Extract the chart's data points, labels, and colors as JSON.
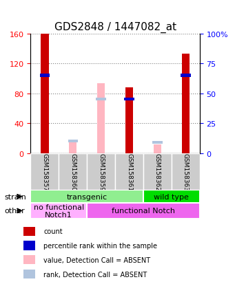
{
  "title": "GDS2848 / 1447082_at",
  "samples": [
    "GSM158357",
    "GSM158360",
    "GSM158359",
    "GSM158361",
    "GSM158362",
    "GSM158363"
  ],
  "count_values": [
    160,
    0,
    0,
    88,
    0,
    133
  ],
  "percentile_values": [
    65,
    0,
    0,
    45,
    0,
    65
  ],
  "absent_value_values": [
    0,
    15,
    93,
    0,
    12,
    0
  ],
  "absent_rank_values": [
    0,
    10,
    45,
    0,
    9,
    0
  ],
  "has_count": [
    true,
    false,
    false,
    true,
    false,
    true
  ],
  "has_percentile": [
    true,
    false,
    false,
    true,
    false,
    true
  ],
  "has_absent_value": [
    false,
    true,
    true,
    false,
    true,
    false
  ],
  "has_absent_rank": [
    false,
    true,
    true,
    false,
    true,
    false
  ],
  "count_color": "#cc0000",
  "percentile_color": "#0000cc",
  "absent_value_color": "#ffb6c1",
  "absent_rank_color": "#b0c4de",
  "left_ylim": [
    0,
    160
  ],
  "right_ylim": [
    0,
    100
  ],
  "left_yticks": [
    0,
    40,
    80,
    120,
    160
  ],
  "right_yticks": [
    0,
    25,
    50,
    75,
    100
  ],
  "right_yticklabels": [
    "0",
    "25",
    "50",
    "75",
    "100%"
  ],
  "bar_width": 0.35,
  "strain_row": [
    {
      "label": "transgenic",
      "span": [
        0,
        4
      ],
      "color": "#90ee90"
    },
    {
      "label": "wild type",
      "span": [
        4,
        6
      ],
      "color": "#00dd00"
    }
  ],
  "other_row": [
    {
      "label": "no functional\nNotch1",
      "span": [
        0,
        2
      ],
      "color": "#ffb0ff"
    },
    {
      "label": "functional Notch",
      "span": [
        2,
        6
      ],
      "color": "#ee66ee"
    }
  ],
  "legend_items": [
    {
      "label": "count",
      "color": "#cc0000"
    },
    {
      "label": "percentile rank within the sample",
      "color": "#0000cc"
    },
    {
      "label": "value, Detection Call = ABSENT",
      "color": "#ffb6c1"
    },
    {
      "label": "rank, Detection Call = ABSENT",
      "color": "#b0c4de"
    }
  ],
  "strain_label": "strain",
  "other_label": "other",
  "xlabel_rotation": -90,
  "tick_label_size": 8,
  "title_fontsize": 11,
  "annotation_label_size": 8,
  "grid_linestyle": "dotted",
  "background_color": "#ffffff",
  "plot_bg_color": "#ffffff",
  "xticklabel_box_color": "#cccccc"
}
